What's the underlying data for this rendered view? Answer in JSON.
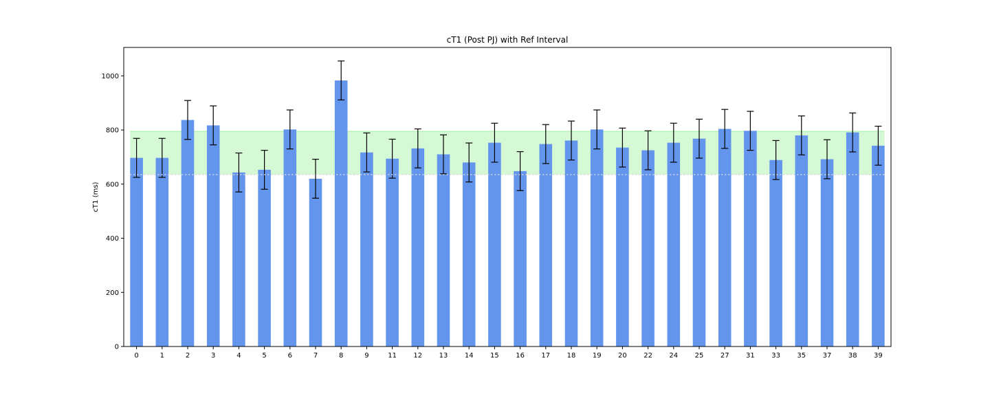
{
  "chart_data": {
    "type": "bar",
    "title": "cT1 (Post PJ) with Ref Interval",
    "xlabel": "",
    "ylabel": "cT1 (ms)",
    "ylim": [
      0,
      1105
    ],
    "yticks": [
      0,
      200,
      400,
      600,
      800,
      1000
    ],
    "grid": false,
    "categories": [
      "0",
      "1",
      "2",
      "3",
      "4",
      "5",
      "6",
      "7",
      "8",
      "9",
      "11",
      "12",
      "13",
      "14",
      "15",
      "16",
      "17",
      "18",
      "19",
      "20",
      "22",
      "24",
      "25",
      "27",
      "31",
      "33",
      "35",
      "37",
      "38",
      "39"
    ],
    "values": [
      697,
      697,
      837,
      817,
      643,
      653,
      802,
      620,
      983,
      717,
      694,
      732,
      710,
      680,
      753,
      648,
      748,
      761,
      802,
      735,
      725,
      753,
      768,
      804,
      797,
      689,
      780,
      692,
      791,
      742
    ],
    "error": 72,
    "reference_interval": [
      635,
      795
    ],
    "colors": {
      "bar": "#6495ed",
      "error_bar": "#000000",
      "reference_band": "#90ee90",
      "reference_line": "#d8d8d8"
    }
  }
}
